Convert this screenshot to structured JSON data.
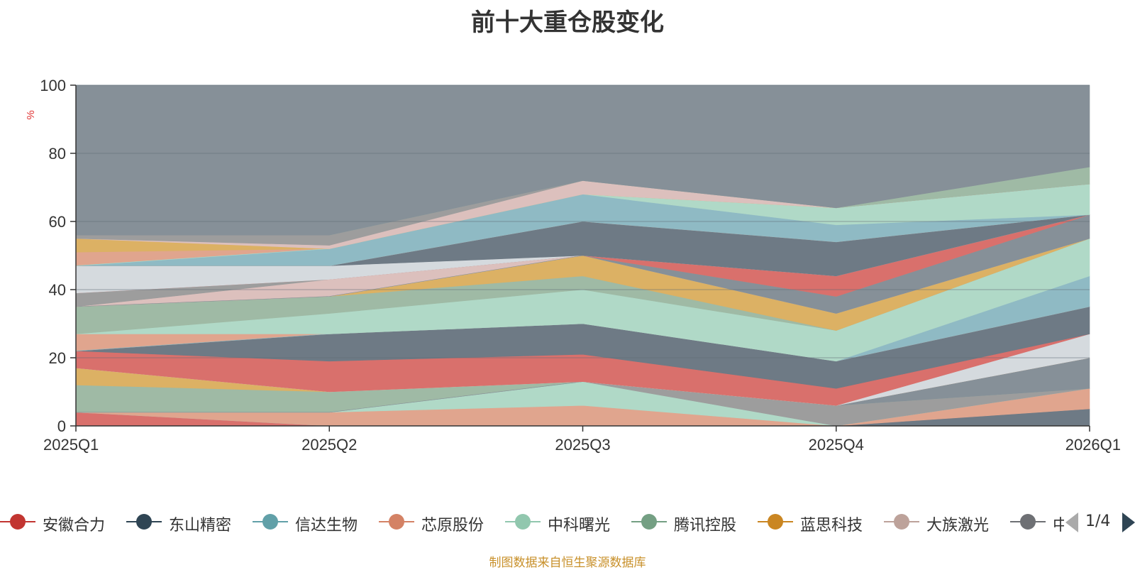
{
  "chart_data": {
    "type": "area",
    "title": "前十大重仓股变化",
    "ylabel": "%",
    "ylim": [
      0,
      100
    ],
    "yticks": [
      0,
      20,
      40,
      60,
      80,
      100
    ],
    "categories": [
      "2025Q1",
      "2025Q2",
      "2025Q3",
      "2025Q4",
      "2026Q1"
    ],
    "layers": [
      {
        "color": "#d9706c",
        "lower": [
          0,
          0,
          0,
          0,
          0
        ],
        "upper": [
          4,
          0,
          0,
          0,
          0
        ]
      },
      {
        "color": "#6e7a85",
        "lower": [
          0,
          0,
          0,
          0,
          0
        ],
        "upper": [
          0,
          0,
          0,
          0,
          5
        ]
      },
      {
        "color": "#8fbac4",
        "lower": [
          4,
          0,
          0,
          0,
          0
        ],
        "upper": [
          4,
          4,
          0,
          0,
          0
        ]
      },
      {
        "color": "#e0a58e",
        "lower": [
          4,
          0,
          0,
          0,
          5
        ],
        "upper": [
          4,
          4,
          6,
          0,
          11
        ]
      },
      {
        "color": "#b0d9c7",
        "lower": [
          4,
          4,
          6,
          0,
          11
        ],
        "upper": [
          4,
          4,
          13,
          0,
          11
        ]
      },
      {
        "color": "#9d9d9d",
        "lower": [
          4,
          4,
          13,
          0,
          11
        ],
        "upper": [
          4,
          4,
          13,
          6,
          11
        ]
      },
      {
        "color": "#9fbaa5",
        "lower": [
          4,
          4,
          13,
          6,
          11
        ],
        "upper": [
          12,
          10,
          13,
          6,
          11
        ]
      },
      {
        "color": "#869098",
        "lower": [
          4,
          4,
          13,
          6,
          11
        ],
        "upper": [
          4,
          4,
          13,
          6,
          20
        ]
      },
      {
        "color": "#dcb164",
        "lower": [
          12,
          10,
          13,
          6,
          20
        ],
        "upper": [
          17,
          10,
          13,
          6,
          20
        ]
      },
      {
        "color": "#dcc0bd",
        "lower": [
          17,
          10,
          13,
          6,
          20
        ],
        "upper": [
          22,
          10,
          13,
          6,
          20
        ]
      },
      {
        "color": "#d5dade",
        "lower": [
          17,
          10,
          13,
          6,
          20
        ],
        "upper": [
          17,
          10,
          13,
          6,
          27
        ]
      },
      {
        "color": "#d9706c",
        "lower": [
          17,
          10,
          13,
          6,
          27
        ],
        "upper": [
          22,
          19,
          21,
          11,
          27
        ]
      },
      {
        "color": "#6e7a85",
        "lower": [
          22,
          19,
          21,
          11,
          27
        ],
        "upper": [
          22,
          27,
          30,
          19,
          35
        ]
      },
      {
        "color": "#e0a58e",
        "lower": [
          22,
          27,
          30,
          19,
          35
        ],
        "upper": [
          27,
          27,
          30,
          19,
          35
        ]
      },
      {
        "color": "#8fbac4",
        "lower": [
          22,
          27,
          30,
          19,
          35
        ],
        "upper": [
          22,
          27,
          30,
          19,
          44
        ]
      },
      {
        "color": "#b0d9c7",
        "lower": [
          27,
          27,
          30,
          19,
          44
        ],
        "upper": [
          27,
          33,
          40,
          28,
          55
        ]
      },
      {
        "color": "#9fbaa5",
        "lower": [
          27,
          33,
          40,
          28,
          55
        ],
        "upper": [
          35,
          38,
          44,
          28,
          55
        ]
      },
      {
        "color": "#dcb164",
        "lower": [
          35,
          38,
          44,
          28,
          55
        ],
        "upper": [
          35,
          38,
          50,
          33,
          55
        ]
      },
      {
        "color": "#dcc0bd",
        "lower": [
          35,
          38,
          50,
          33,
          55
        ],
        "upper": [
          35,
          43,
          50,
          33,
          55
        ]
      },
      {
        "color": "#869098",
        "lower": [
          35,
          38,
          50,
          33,
          55
        ],
        "upper": [
          35,
          38,
          50,
          38,
          62
        ]
      },
      {
        "color": "#9d9d9d",
        "lower": [
          35,
          43,
          50,
          38,
          62
        ],
        "upper": [
          39,
          43,
          50,
          38,
          62
        ]
      },
      {
        "color": "#d9706c",
        "lower": [
          39,
          43,
          50,
          38,
          62
        ],
        "upper": [
          39,
          43,
          50,
          44,
          62
        ]
      },
      {
        "color": "#d5dade",
        "lower": [
          39,
          43,
          50,
          44,
          62
        ],
        "upper": [
          47,
          47,
          50,
          44,
          62
        ]
      },
      {
        "color": "#6e7a85",
        "lower": [
          47,
          47,
          50,
          44,
          62
        ],
        "upper": [
          47,
          47,
          60,
          54,
          62
        ]
      },
      {
        "color": "#e0a58e",
        "lower": [
          47,
          47,
          60,
          54,
          62
        ],
        "upper": [
          51,
          52,
          60,
          54,
          62
        ]
      },
      {
        "color": "#8fbac4",
        "lower": [
          47,
          47,
          60,
          54,
          62
        ],
        "upper": [
          47,
          52,
          68,
          59,
          62
        ]
      },
      {
        "color": "#b0d9c7",
        "lower": [
          47,
          52,
          68,
          59,
          62
        ],
        "upper": [
          47,
          52,
          68,
          64,
          71
        ]
      },
      {
        "color": "#dcb164",
        "lower": [
          51,
          52,
          68,
          64,
          71
        ],
        "upper": [
          55,
          52,
          68,
          64,
          71
        ]
      },
      {
        "color": "#dcc0bd",
        "lower": [
          55,
          52,
          68,
          64,
          71
        ],
        "upper": [
          55,
          53,
          72,
          64,
          71
        ]
      },
      {
        "color": "#9d9d9d",
        "lower": [
          55,
          53,
          72,
          64,
          71
        ],
        "upper": [
          56,
          56,
          72,
          64,
          71
        ]
      },
      {
        "color": "#9fbaa5",
        "lower": [
          56,
          56,
          72,
          64,
          71
        ],
        "upper": [
          56,
          56,
          72,
          64,
          76
        ]
      },
      {
        "color": "#869098",
        "lower": [
          56,
          56,
          72,
          64,
          76
        ],
        "upper": [
          100,
          100,
          100,
          100,
          100
        ]
      }
    ],
    "legend": [
      {
        "name": "安徽合力",
        "color": "#c23531"
      },
      {
        "name": "东山精密",
        "color": "#2f4554"
      },
      {
        "name": "信达生物",
        "color": "#61a0a8"
      },
      {
        "name": "芯原股份",
        "color": "#d48265"
      },
      {
        "name": "中科曙光",
        "color": "#91c7ae"
      },
      {
        "name": "腾讯控股",
        "color": "#749f83"
      },
      {
        "name": "蓝思科技",
        "color": "#ca8622"
      },
      {
        "name": "大族激光",
        "color": "#bda29a"
      },
      {
        "name": "中",
        "color": "#6e7074"
      }
    ],
    "legend_page": "1/4"
  },
  "source_note": "制图数据来自恒生聚源数据库"
}
